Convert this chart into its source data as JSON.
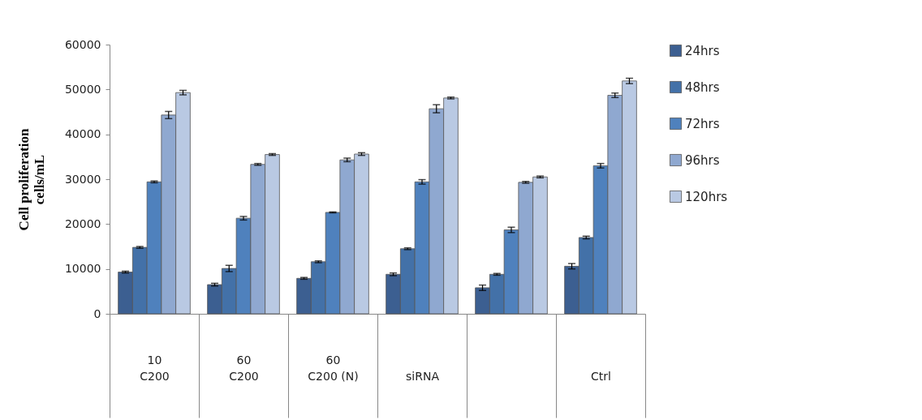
{
  "chart_data": {
    "type": "bar",
    "ylabel": "Cell proliferation\ncells/mL",
    "categories": [
      "10\nC200",
      "60\nC200",
      "60\nC200 (N)",
      "siRNA",
      null,
      "Ctrl"
    ],
    "series": [
      {
        "name": "24hrs",
        "color": "#3c5f91",
        "values": [
          9300,
          6500,
          7900,
          8800,
          5800,
          10600
        ],
        "errors": [
          200,
          300,
          200,
          300,
          600,
          600
        ]
      },
      {
        "name": "48hrs",
        "color": "#4371a8",
        "values": [
          14800,
          10100,
          11600,
          14500,
          8800,
          17000
        ],
        "errors": [
          200,
          700,
          200,
          200,
          200,
          300
        ]
      },
      {
        "name": "72hrs",
        "color": "#4f81bd",
        "values": [
          29400,
          21300,
          22600,
          29400,
          18700,
          33000
        ],
        "errors": [
          200,
          400,
          100,
          500,
          600,
          500
        ]
      },
      {
        "name": "96hrs",
        "color": "#8fa8d0",
        "values": [
          44300,
          33300,
          34300,
          45700,
          29300,
          48700
        ],
        "errors": [
          800,
          200,
          400,
          900,
          200,
          500
        ]
      },
      {
        "name": "120hrs",
        "color": "#b9c9e3",
        "values": [
          49300,
          35500,
          35600,
          48100,
          30500,
          51900
        ],
        "errors": [
          500,
          200,
          300,
          200,
          200,
          600
        ]
      }
    ],
    "ylim": [
      0,
      60000
    ],
    "yticks": [
      0,
      10000,
      20000,
      30000,
      40000,
      50000,
      60000
    ],
    "legend": "right"
  }
}
